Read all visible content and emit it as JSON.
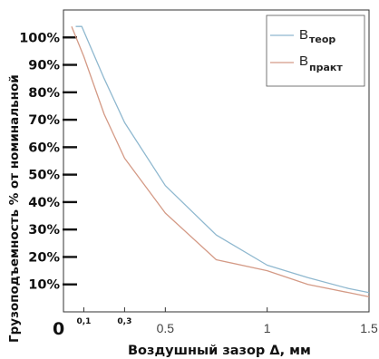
{
  "chart_data": {
    "type": "line",
    "xlabel": "Воздушный зазор  Δ, мм",
    "ylabel": "Грузоподъемность % от номинальной",
    "origin_label": "0",
    "xlim": [
      0,
      1.5
    ],
    "ylim": [
      0,
      110
    ],
    "x_ticks": [
      {
        "value": 0.1,
        "label": "0,1",
        "style": "small"
      },
      {
        "value": 0.3,
        "label": "0,3",
        "style": "small"
      },
      {
        "value": 0.5,
        "label": "0.5",
        "style": "big"
      },
      {
        "value": 1.0,
        "label": "1",
        "style": "big"
      },
      {
        "value": 1.5,
        "label": "1.5",
        "style": "big"
      }
    ],
    "y_ticks": [
      {
        "value": 10,
        "label": "10%"
      },
      {
        "value": 20,
        "label": "20%"
      },
      {
        "value": 30,
        "label": "30%"
      },
      {
        "value": 40,
        "label": "40%"
      },
      {
        "value": 50,
        "label": "50%"
      },
      {
        "value": 60,
        "label": "60%"
      },
      {
        "value": 70,
        "label": "70%"
      },
      {
        "value": 80,
        "label": "80%"
      },
      {
        "value": 90,
        "label": "90%"
      },
      {
        "value": 100,
        "label": "100%"
      }
    ],
    "legend_position": "top-right",
    "series": [
      {
        "name": "B",
        "name_sub": "теор",
        "color": "#8fb8cf",
        "points": [
          [
            0.06,
            104
          ],
          [
            0.09,
            104
          ],
          [
            0.2,
            85
          ],
          [
            0.3,
            69
          ],
          [
            0.5,
            46
          ],
          [
            0.75,
            28
          ],
          [
            1.0,
            17
          ],
          [
            1.2,
            12.5
          ],
          [
            1.4,
            8.5
          ],
          [
            1.5,
            7
          ]
        ]
      },
      {
        "name": "B",
        "name_sub": "практ",
        "color": "#d49a86",
        "points": [
          [
            0.04,
            104
          ],
          [
            0.1,
            93
          ],
          [
            0.2,
            72
          ],
          [
            0.3,
            56
          ],
          [
            0.5,
            36
          ],
          [
            0.75,
            19
          ],
          [
            1.0,
            15
          ],
          [
            1.2,
            10
          ],
          [
            1.4,
            7
          ],
          [
            1.5,
            5.5
          ]
        ]
      }
    ]
  }
}
